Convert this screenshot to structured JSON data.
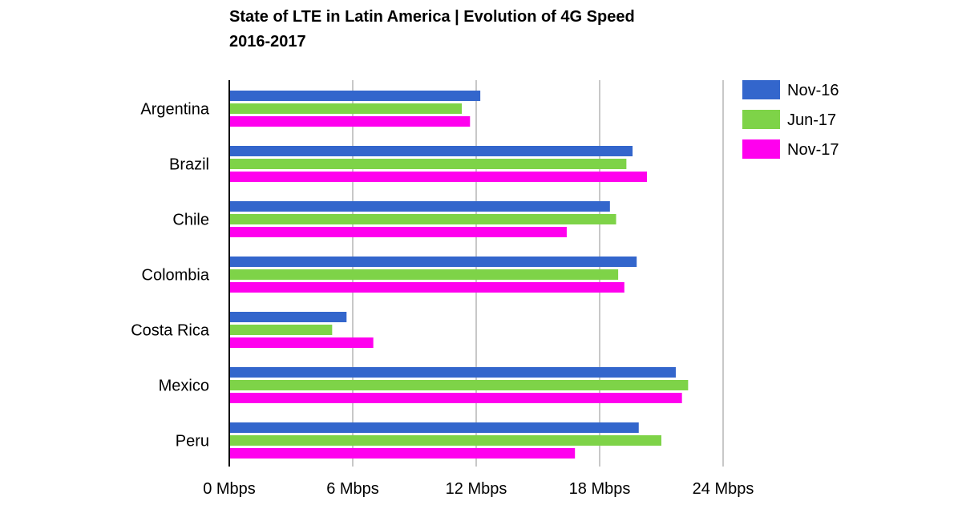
{
  "chart_data": {
    "type": "bar",
    "orientation": "horizontal",
    "title_lines": [
      "State of LTE in Latin America | Evolution of 4G Speed",
      "2016-2017"
    ],
    "categories": [
      "Argentina",
      "Brazil",
      "Chile",
      "Colombia",
      "Costa Rica",
      "Mexico",
      "Peru"
    ],
    "series": [
      {
        "name": "Nov-16",
        "color": "#3366cc",
        "values": [
          12.2,
          19.6,
          18.5,
          19.8,
          5.7,
          21.7,
          19.9
        ]
      },
      {
        "name": "Jun-17",
        "color": "#7ed348",
        "values": [
          11.3,
          19.3,
          18.8,
          18.9,
          5.0,
          22.3,
          21.0
        ]
      },
      {
        "name": "Nov-17",
        "color": "#ff00ee",
        "values": [
          11.7,
          20.3,
          16.4,
          19.2,
          7.0,
          22.0,
          16.8
        ]
      }
    ],
    "xlim": [
      0,
      24
    ],
    "ticks": [
      0,
      6,
      12,
      18,
      24
    ],
    "tick_labels": [
      "0 Mbps",
      "6 Mbps",
      "12 Mbps",
      "18 Mbps",
      "24 Mbps"
    ],
    "grid": true,
    "legend_position": "top-right"
  }
}
